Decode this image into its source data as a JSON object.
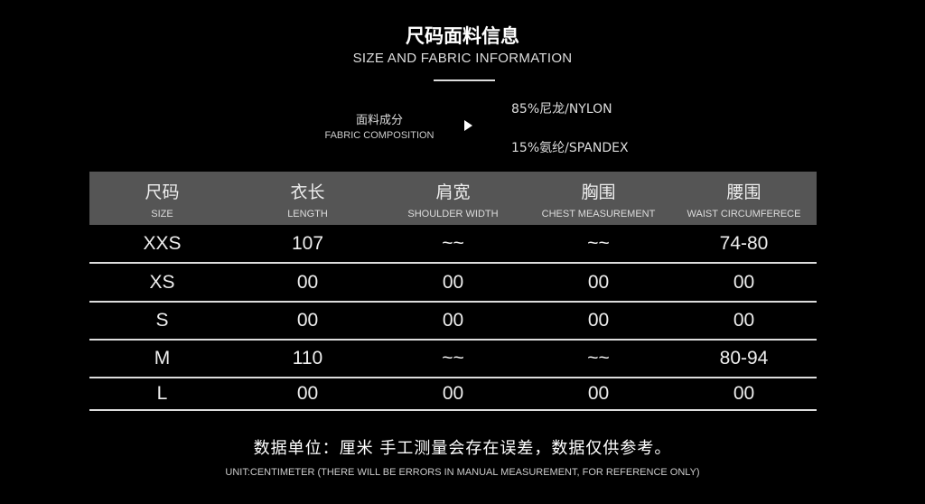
{
  "header": {
    "title": "尺码面料信息",
    "subtitle": "SIZE AND FABRIC INFORMATION"
  },
  "fabric": {
    "label_cn": "面料成分",
    "label_en": "FABRIC COMPOSITION",
    "arrow_icon": "play-triangle-icon",
    "components": [
      "85%尼龙/NYLON",
      "15%氨纶/SPANDEX"
    ]
  },
  "table": {
    "header_bg": "#555555",
    "columns": [
      {
        "cn": "尺码",
        "en": "SIZE"
      },
      {
        "cn": "衣长",
        "en": "LENGTH"
      },
      {
        "cn": "肩宽",
        "en": "SHOULDER WIDTH"
      },
      {
        "cn": "胸围",
        "en": "CHEST MEASUREMENT"
      },
      {
        "cn": "腰围",
        "en": "WAIST CIRCUMFERECE"
      }
    ],
    "rows": [
      [
        "XXS",
        "107",
        "~~",
        "~~",
        "74-80"
      ],
      [
        "XS",
        "00",
        "00",
        "00",
        "00"
      ],
      [
        "S",
        "00",
        "00",
        "00",
        "00"
      ],
      [
        "M",
        "110",
        "~~",
        "~~",
        "80-94"
      ],
      [
        "L",
        "00",
        "00",
        "00",
        "00"
      ]
    ]
  },
  "note": {
    "cn": "数据单位：厘米 手工测量会存在误差，数据仅供参考。",
    "en": "UNIT:CENTIMETER (THERE WILL BE ERRORS IN MANUAL MEASUREMENT, FOR REFERENCE ONLY)"
  }
}
